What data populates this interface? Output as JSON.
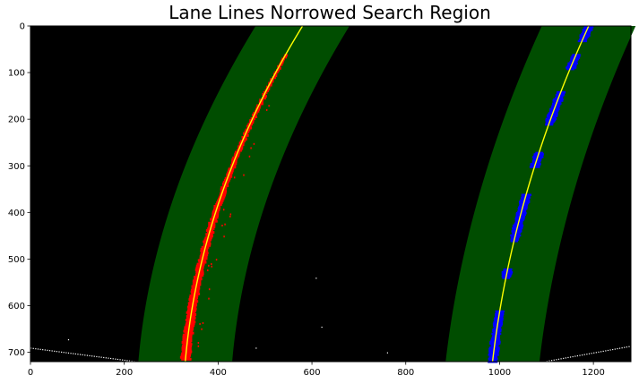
{
  "chart_data": {
    "type": "image",
    "title": "Lane Lines Norrowed Search Region",
    "xlabel": "",
    "ylabel": "",
    "xlim": [
      0,
      1280
    ],
    "ylim": [
      720,
      0
    ],
    "x_ticks": [
      0,
      200,
      400,
      600,
      800,
      1000,
      1200
    ],
    "y_ticks": [
      0,
      100,
      200,
      300,
      400,
      500,
      600,
      700
    ],
    "grid": false,
    "background_color": "#000000",
    "search_margin": 100,
    "lanes": [
      {
        "name": "",
        "fit_points": [
          [
            580,
            0
          ],
          [
            430,
            300
          ],
          [
            330,
            720
          ]
        ],
        "pixel_color": "#ff0000",
        "fit_color": "#ffff00",
        "region_color": "#004d00"
      },
      {
        "name": "",
        "fit_points": [
          [
            1190,
            0
          ],
          [
            1060,
            350
          ],
          [
            985,
            720
          ]
        ],
        "pixel_color": "#0000ff",
        "fit_color": "#ffff00",
        "region_color": "#004d00"
      }
    ]
  }
}
